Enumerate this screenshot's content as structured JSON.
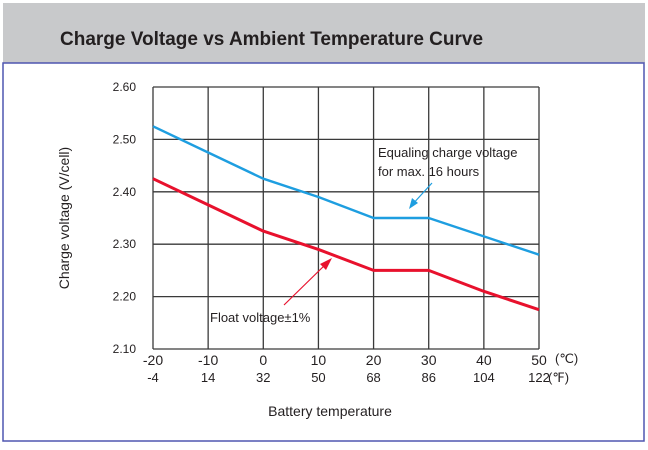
{
  "chart_data": {
    "type": "line",
    "title": "Charge Voltage vs Ambient Temperature Curve",
    "xlabel": "Battery temperature",
    "ylabel": "Charge voltage (V/cell)",
    "x": [
      -20,
      -10,
      0,
      10,
      20,
      30,
      40,
      50
    ],
    "x_tick_labels_c": [
      "-20",
      "-10",
      "0",
      "10",
      "20",
      "30",
      "40",
      "50"
    ],
    "x_tick_labels_f": [
      "-4",
      "14",
      "32",
      "50",
      "68",
      "86",
      "104",
      "122"
    ],
    "x_unit_c": "(℃)",
    "x_unit_f": "(℉)",
    "xlim": [
      -20,
      50
    ],
    "ylim": [
      2.1,
      2.6
    ],
    "y_ticks": [
      2.1,
      2.2,
      2.3,
      2.4,
      2.5,
      2.6
    ],
    "y_tick_labels": [
      "2.10",
      "2.20",
      "2.30",
      "2.40",
      "2.50",
      "2.60"
    ],
    "grid": true,
    "series": [
      {
        "name": "Equaling charge voltage for max. 16 hours",
        "color": "#1e9ee0",
        "values": [
          2.525,
          2.475,
          2.425,
          2.39,
          2.35,
          2.35,
          2.315,
          2.28
        ]
      },
      {
        "name": "Float voltage±1%",
        "color": "#e8112d",
        "values": [
          2.425,
          2.375,
          2.325,
          2.29,
          2.25,
          2.25,
          2.21,
          2.175
        ]
      }
    ],
    "annotations": {
      "equal_line1": "Equaling charge voltage",
      "equal_line2": "for max. 16 hours",
      "float": "Float voltage±1%"
    }
  }
}
